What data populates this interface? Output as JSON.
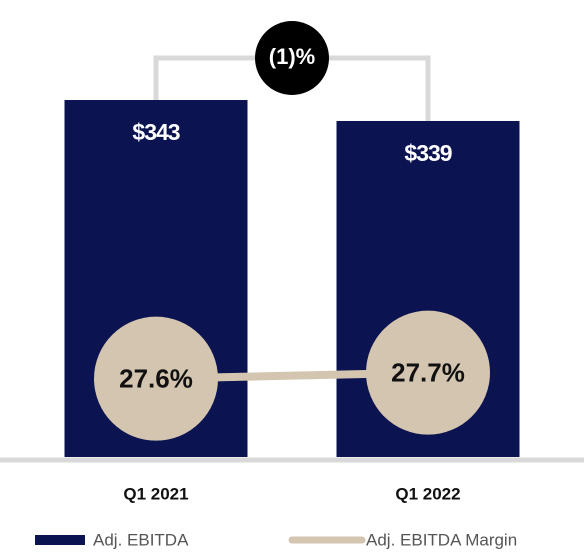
{
  "chart_data": {
    "type": "bar",
    "categories": [
      "Q1 2021",
      "Q1 2022"
    ],
    "series": [
      {
        "name": "Adj. EBITDA",
        "type": "bar",
        "color": "#0b1450",
        "values": [
          343,
          339
        ],
        "value_labels": [
          "$343",
          "$339"
        ]
      },
      {
        "name": "Adj. EBITDA Margin",
        "type": "line",
        "axis": "y2",
        "color": "#d4c5b0",
        "values": [
          27.6,
          27.7
        ],
        "value_labels": [
          "27.6%",
          "27.7%"
        ]
      }
    ],
    "ylim": [
      275,
      345
    ],
    "y2lim": [
      26.3,
      32.4
    ],
    "annotation": "(1)%",
    "legend": "bottom"
  }
}
